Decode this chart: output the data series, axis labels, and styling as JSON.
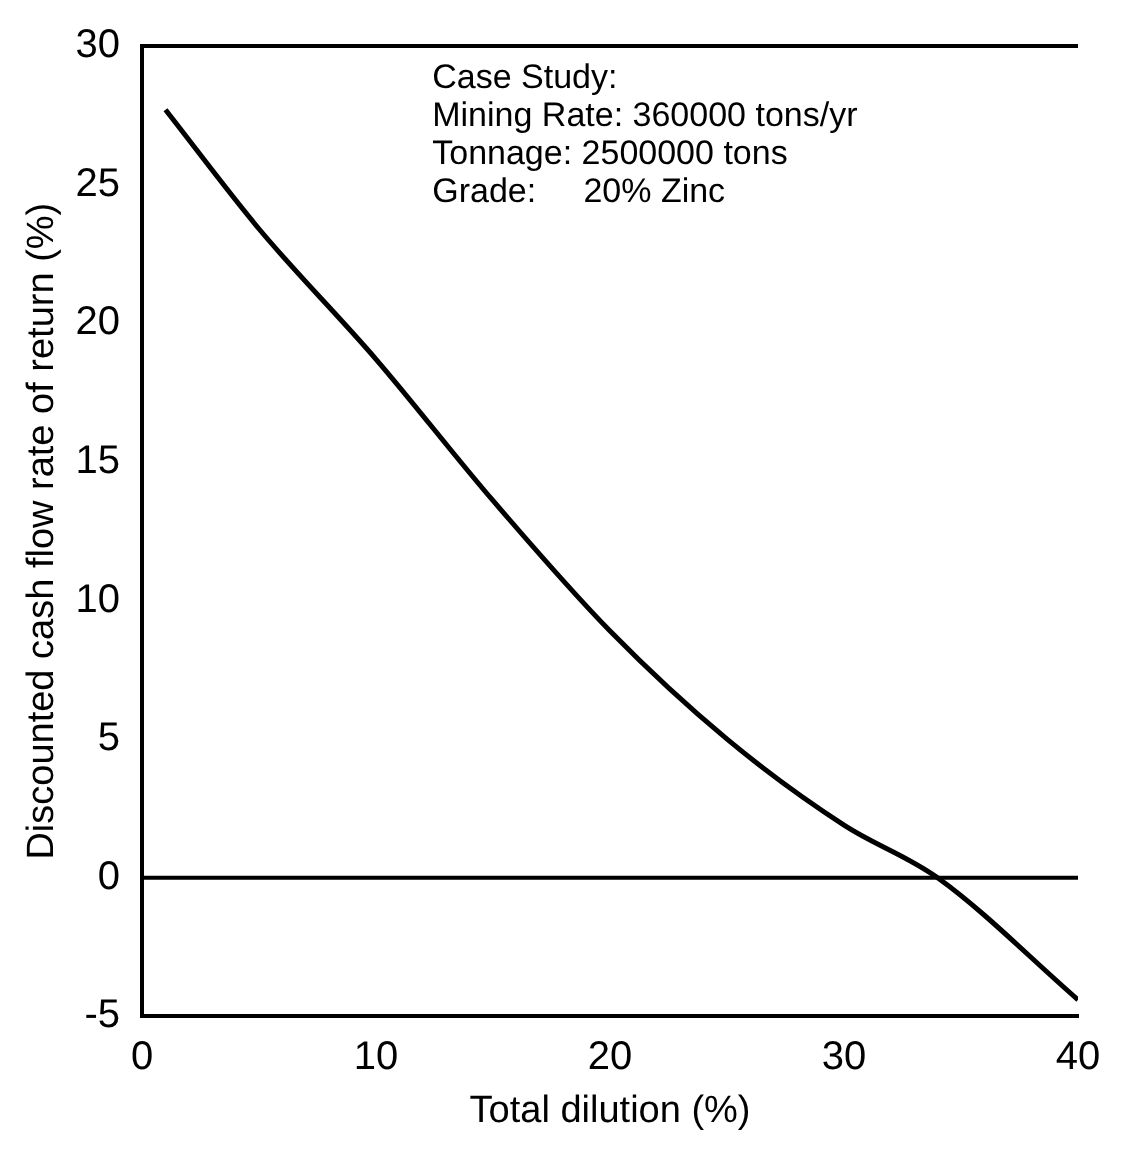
{
  "chart_data": {
    "type": "line",
    "xlabel": "Total dilution (%)",
    "ylabel": "Discounted cash flow rate of return (%)",
    "x": [
      1,
      5,
      10,
      15,
      20,
      25,
      30,
      34,
      40
    ],
    "series": [
      {
        "color": "#000000",
        "values": [
          27.7,
          23.4,
          18.7,
          13.6,
          8.9,
          5.0,
          1.9,
          0,
          -4.4
        ]
      }
    ],
    "xlim": [
      0,
      40
    ],
    "xticks": [
      0,
      10,
      20,
      30,
      40
    ],
    "ylim": [
      -5,
      30
    ],
    "yticks": [
      -5,
      0,
      5,
      10,
      15,
      20,
      25,
      30
    ],
    "ref_lines": [
      {
        "axis": "y",
        "value": 0,
        "color": "#000000"
      }
    ],
    "annotations": [
      "Case Study:",
      "Mining Rate: 360000 tons/yr",
      "Tonnage: 2500000 tons",
      "Grade:     20% Zinc"
    ],
    "grid": false,
    "legend": false,
    "marker": "none",
    "line_style": "solid"
  }
}
